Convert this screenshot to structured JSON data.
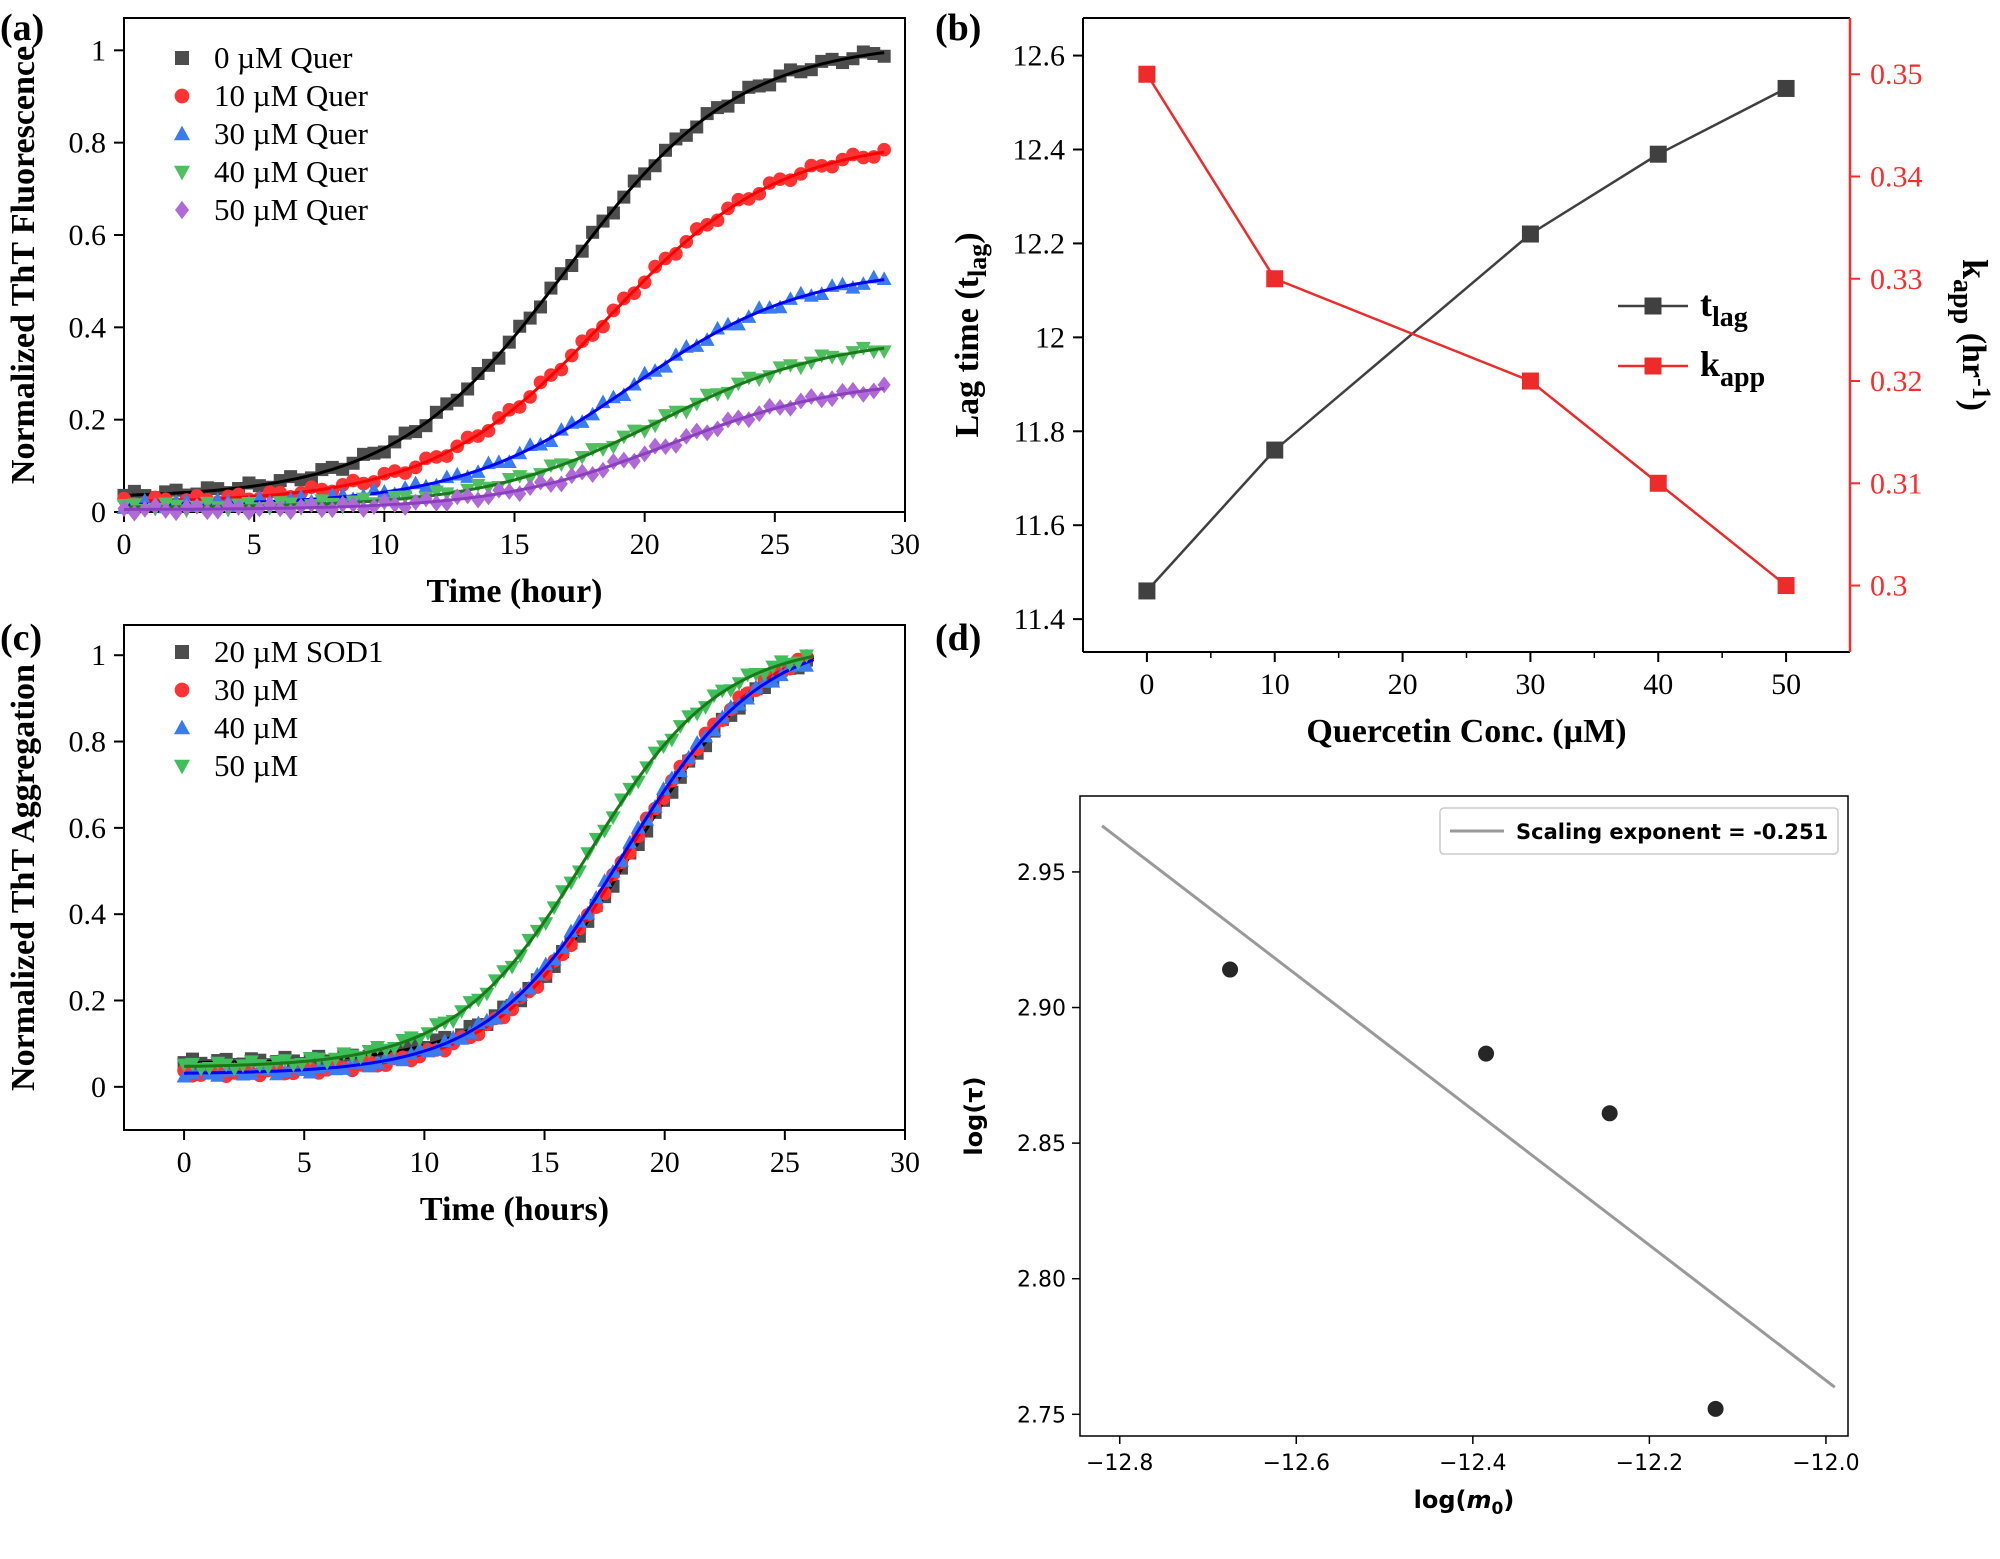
{
  "figure": {
    "labels": [
      "(a)",
      "(b)",
      "(c)",
      "(d)"
    ]
  },
  "chart_data": [
    {
      "id": "a",
      "type": "line",
      "title": "",
      "xlabel": "Time (hour)",
      "ylabel": "Normalized ThT Fluorescence",
      "xlim": [
        0,
        30
      ],
      "ylim": [
        0,
        1.07
      ],
      "xticks": [
        0,
        5,
        10,
        15,
        20,
        25,
        30
      ],
      "yticks": [
        0,
        0.2,
        0.4,
        0.6,
        0.8,
        1
      ],
      "legend_position": "top-left",
      "series": [
        {
          "name": "0 µM Quer",
          "color": "#4d4d4d",
          "fit_color": "#000000",
          "marker": "square",
          "y0": 0.03,
          "ymax": 1.02,
          "k": 0.3,
          "t50": 17.0,
          "x_end": 29.3
        },
        {
          "name": "10 µM Quer",
          "color": "#ff3333",
          "fit_color": "#ff0000",
          "marker": "circle",
          "y0": 0.02,
          "ymax": 0.81,
          "k": 0.3,
          "t50": 18.5,
          "x_end": 29.3
        },
        {
          "name": "30 µM Quer",
          "color": "#3a7bf0",
          "fit_color": "#0000ff",
          "marker": "triangle",
          "y0": 0.015,
          "ymax": 0.53,
          "k": 0.3,
          "t50": 19.5,
          "x_end": 29.3
        },
        {
          "name": "40 µM Quer",
          "color": "#4fbf5f",
          "fit_color": "#1a7a1a",
          "marker": "tri-down",
          "y0": 0.01,
          "ymax": 0.38,
          "k": 0.3,
          "t50": 20.5,
          "x_end": 29.3
        },
        {
          "name": "50 µM Quer",
          "color": "#b06ad8",
          "fit_color": "#8a3fbf",
          "marker": "diamond",
          "y0": 0.005,
          "ymax": 0.29,
          "k": 0.3,
          "t50": 21.0,
          "x_end": 29.3
        }
      ]
    },
    {
      "id": "b",
      "type": "line",
      "title": "",
      "xlabel": "Quercetin Conc. (µM)",
      "ylabel_left": "Lag time (t",
      "ylabel_left_sub": "lag",
      "ylabel_left_end": ")",
      "ylabel_right": "k",
      "ylabel_right_sub": "app",
      "ylabel_right_end": " (hr",
      "ylabel_right_sup": "-1",
      "ylabel_right_close": ")",
      "xlim": [
        -5,
        55
      ],
      "ylim_left": [
        11.33,
        12.68
      ],
      "ylim_right": [
        0.2935,
        0.3555
      ],
      "xticks": [
        0,
        10,
        20,
        30,
        40,
        50
      ],
      "yticks_left": [
        11.4,
        11.6,
        11.8,
        12,
        12.2,
        12.4,
        12.6
      ],
      "yticks_right": [
        0.3,
        0.31,
        0.32,
        0.33,
        0.34,
        0.35
      ],
      "right_axis_color": "#ff2a2a",
      "categories": [
        0,
        10,
        30,
        40,
        50
      ],
      "series": [
        {
          "name": "t",
          "name_sub": "lag",
          "axis": "left",
          "color": "#404040",
          "values": [
            11.46,
            11.76,
            12.22,
            12.39,
            12.53
          ]
        },
        {
          "name": "k",
          "name_sub": "app",
          "axis": "right",
          "color": "#ee2b2b",
          "values": [
            0.35,
            0.33,
            0.32,
            0.31,
            0.3
          ]
        }
      ]
    },
    {
      "id": "c",
      "type": "line",
      "title": "",
      "xlabel": "Time (hours)",
      "ylabel": "Normalized ThT Aggregation",
      "xlim": [
        -2.5,
        30
      ],
      "ylim": [
        -0.1,
        1.07
      ],
      "xticks": [
        0,
        5,
        10,
        15,
        20,
        25,
        30
      ],
      "yticks": [
        0,
        0.2,
        0.4,
        0.6,
        0.8,
        1
      ],
      "legend_position": "top-left",
      "series": [
        {
          "name": "20 µM SOD1",
          "color": "#4d4d4d",
          "fit_color": "#000000",
          "marker": "square",
          "y0": 0.055,
          "ymax": 1.06,
          "k": 0.36,
          "t50": 18.8,
          "x_end": 26.2
        },
        {
          "name": "30 µM",
          "color": "#ff3333",
          "fit_color": "#ff0000",
          "marker": "circle",
          "y0": 0.03,
          "ymax": 1.06,
          "k": 0.36,
          "t50": 18.5,
          "x_end": 26.2
        },
        {
          "name": "40 µM",
          "color": "#3a7bf0",
          "fit_color": "#0000ff",
          "marker": "triangle",
          "y0": 0.03,
          "ymax": 1.05,
          "k": 0.35,
          "t50": 18.3,
          "x_end": 26.2
        },
        {
          "name": "50 µM",
          "color": "#3fbf5a",
          "fit_color": "#1a7a1a",
          "marker": "tri-down",
          "y0": 0.045,
          "ymax": 1.03,
          "k": 0.36,
          "t50": 16.8,
          "x_end": 26.2
        }
      ]
    },
    {
      "id": "d",
      "type": "scatter",
      "title": "",
      "xlabel": "log(",
      "xlabel_var": "m",
      "xlabel_sub": "0",
      "xlabel_end": ")",
      "ylabel": "log(τ)",
      "xlim": [
        -12.845,
        -11.975
      ],
      "ylim": [
        2.742,
        2.978
      ],
      "xticks": [
        -12.8,
        -12.6,
        -12.4,
        -12.2,
        -12.0
      ],
      "xtick_labels": [
        "−12.8",
        "−12.6",
        "−12.4",
        "−12.2",
        "−12.0"
      ],
      "yticks": [
        2.75,
        2.8,
        2.85,
        2.9,
        2.95
      ],
      "ytick_labels": [
        "2.75",
        "2.80",
        "2.85",
        "2.90",
        "2.95"
      ],
      "points": {
        "x": [
          -12.675,
          -12.385,
          -12.245,
          -12.125
        ],
        "y": [
          2.914,
          2.883,
          2.861,
          2.752
        ]
      },
      "fit_line": {
        "x": [
          -12.82,
          -11.99
        ],
        "y": [
          2.967,
          2.76
        ]
      },
      "legend": {
        "label": "Scaling exponent = -0.251",
        "position": "top-right"
      },
      "point_color": "#262626",
      "line_color": "#9a9a9a"
    }
  ]
}
